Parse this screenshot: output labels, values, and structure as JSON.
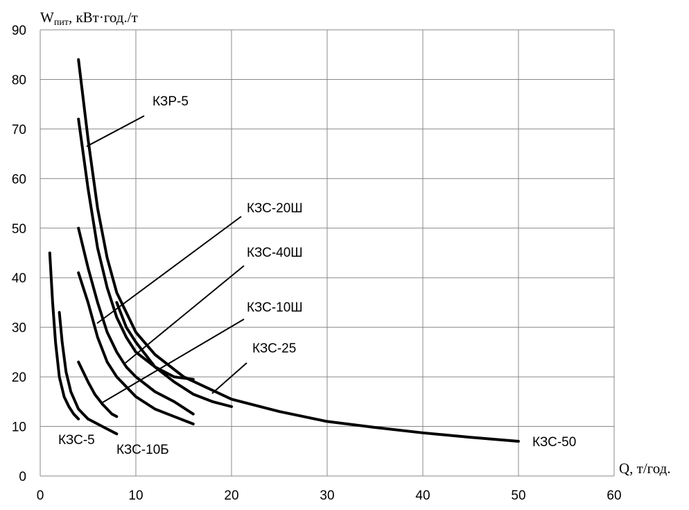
{
  "chart_data": {
    "type": "line",
    "ylabel": {
      "main": "W",
      "sub": "пит",
      "rest": ", кВт·год./т"
    },
    "xlabel": "Q, т/год.",
    "xlim": [
      0,
      60
    ],
    "ylim": [
      0,
      90
    ],
    "x_ticks": [
      "0",
      "10",
      "20",
      "30",
      "40",
      "50",
      "60"
    ],
    "y_ticks": [
      "0",
      "10",
      "20",
      "30",
      "40",
      "50",
      "60",
      "70",
      "80",
      "90"
    ],
    "grid": true,
    "series": [
      {
        "name": "КЗС-5",
        "x": [
          1.0,
          1.3,
          1.6,
          2.0,
          2.5,
          3.0,
          3.5,
          4.0
        ],
        "y": [
          45,
          35,
          27,
          20,
          16,
          14,
          12.5,
          11.5
        ]
      },
      {
        "name": "КЗС-10Б",
        "x": [
          2.0,
          2.3,
          2.7,
          3.2,
          4.0,
          5.0,
          6.5,
          8.0
        ],
        "y": [
          33,
          27,
          21,
          17,
          13.5,
          11.5,
          10,
          8.5
        ]
      },
      {
        "name": "КЗС-10Ш",
        "x": [
          4.0,
          4.5,
          5.0,
          5.7,
          6.5,
          7.0,
          7.5,
          8.0
        ],
        "y": [
          23,
          21,
          19,
          16.5,
          14.5,
          13.5,
          12.5,
          12
        ]
      },
      {
        "name": "КЗС-40Ш",
        "x": [
          4.0,
          5.0,
          6.0,
          7.0,
          8.0,
          10.0,
          12.0,
          14.0,
          16.0
        ],
        "y": [
          41,
          35,
          28,
          23,
          20,
          16,
          13.5,
          12,
          10.5
        ]
      },
      {
        "name": "КЗС-20Ш",
        "x": [
          4.0,
          5.0,
          6.0,
          7.0,
          8.0,
          9.0,
          10.0,
          12.0,
          14.0,
          16.0
        ],
        "y": [
          50,
          42,
          35,
          29,
          25,
          22,
          20,
          17,
          15,
          12.5
        ]
      },
      {
        "name": "КЗС-25",
        "x": [
          8.0,
          9.0,
          10.0,
          12.0,
          14.0,
          16.0,
          18.0,
          20.0
        ],
        "y": [
          35,
          30,
          27,
          22,
          19,
          16.5,
          15,
          14
        ]
      },
      {
        "name": "КЗР-5",
        "x": [
          4.0,
          5.0,
          6.0,
          7.0,
          8.0,
          9.0,
          10.0,
          12.0,
          14.0,
          16.0
        ],
        "y": [
          72,
          58,
          46,
          38,
          32,
          28,
          25,
          22,
          20,
          19.5
        ]
      },
      {
        "name": "КЗС-50",
        "x": [
          4.0,
          5.0,
          6.0,
          7.0,
          8.0,
          10.0,
          12.0,
          15.0,
          20.0,
          25.0,
          30.0,
          35.0,
          40.0,
          45.0,
          50.0
        ],
        "y": [
          84,
          68,
          54,
          44,
          37,
          29,
          24.5,
          20,
          15.5,
          13,
          11,
          9.8,
          8.7,
          7.8,
          7.0
        ]
      }
    ]
  }
}
